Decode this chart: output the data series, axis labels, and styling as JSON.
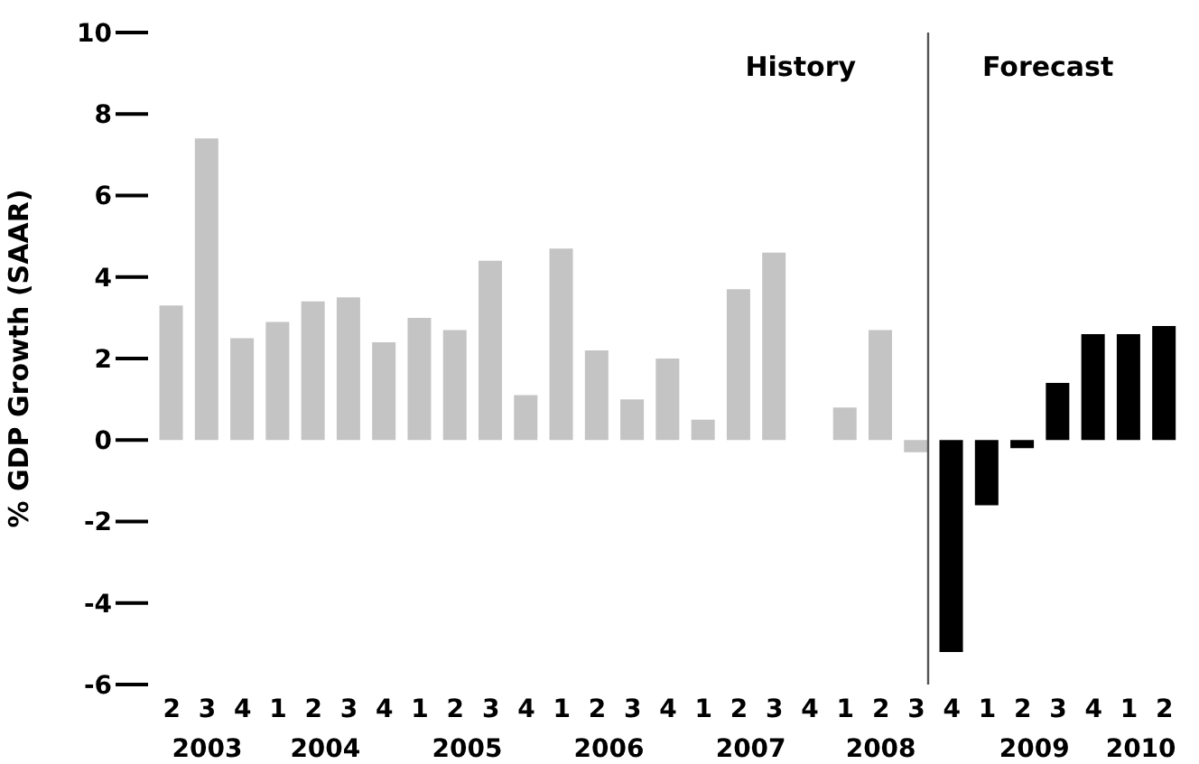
{
  "chart_data": {
    "type": "bar",
    "ylabel": "% GDP Growth (SAAR)",
    "x": [
      "2003-04",
      "2003-07",
      "2003-10",
      "2004-01",
      "2004-04",
      "2004-07",
      "2004-10",
      "2005-01",
      "2005-04",
      "2005-07",
      "2005-10",
      "2006-01",
      "2006-04",
      "2006-07",
      "2006-10",
      "2007-01",
      "2007-04",
      "2007-07",
      "2007-10",
      "2008-01",
      "2008-04",
      "2008-07",
      "2008-10",
      "2009-01",
      "2009-04",
      "2009-07",
      "2009-10",
      "2010-01",
      "2010-04"
    ],
    "values": [
      3.3,
      7.4,
      2.5,
      2.9,
      3.4,
      3.5,
      2.4,
      3.0,
      2.7,
      4.4,
      1.1,
      4.7,
      2.2,
      1.0,
      2.0,
      0.5,
      3.7,
      4.6,
      0,
      0.8,
      2.7,
      -0.3,
      -5.2,
      -1.6,
      -0.2,
      1.4,
      2.6,
      2.6,
      2.8
    ],
    "colors": [
      "#c4c4c4",
      "#c4c4c4",
      "#c4c4c4",
      "#c4c4c4",
      "#c4c4c4",
      "#c4c4c4",
      "#c4c4c4",
      "#c4c4c4",
      "#c4c4c4",
      "#c4c4c4",
      "#c4c4c4",
      "#c4c4c4",
      "#c4c4c4",
      "#c4c4c4",
      "#c4c4c4",
      "#c4c4c4",
      "#c4c4c4",
      "#c4c4c4",
      "#c4c4c4",
      "#c4c4c4",
      "#c4c4c4",
      "#c4c4c4",
      "#000000",
      "#000000",
      "#000000",
      "#000000",
      "#000000",
      "#000000",
      "#000000"
    ],
    "xlim": [
      "2003-02",
      "2010-06"
    ],
    "xticks": [
      {
        "value": "2003-04",
        "label": "2"
      },
      {
        "value": "2003-07",
        "label": "3"
      },
      {
        "value": "2003-10",
        "label": "4"
      },
      {
        "value": "2004-01",
        "label": "1"
      },
      {
        "value": "2004-04",
        "label": "2"
      },
      {
        "value": "2004-07",
        "label": "3"
      },
      {
        "value": "2004-10",
        "label": "4"
      },
      {
        "value": "2005-01",
        "label": "1"
      },
      {
        "value": "2005-04",
        "label": "2"
      },
      {
        "value": "2005-07",
        "label": "3"
      },
      {
        "value": "2005-10",
        "label": "4"
      },
      {
        "value": "2006-01",
        "label": "1"
      },
      {
        "value": "2006-04",
        "label": "2"
      },
      {
        "value": "2006-07",
        "label": "3"
      },
      {
        "value": "2006-10",
        "label": "4"
      },
      {
        "value": "2007-01",
        "label": "1"
      },
      {
        "value": "2007-04",
        "label": "2"
      },
      {
        "value": "2007-07",
        "label": "3"
      },
      {
        "value": "2007-10",
        "label": "4"
      },
      {
        "value": "2008-01",
        "label": "1"
      },
      {
        "value": "2008-04",
        "label": "2"
      },
      {
        "value": "2008-07",
        "label": "3"
      },
      {
        "value": "2008-10",
        "label": "4"
      },
      {
        "value": "2009-01",
        "label": "1"
      },
      {
        "value": "2009-04",
        "label": "2"
      },
      {
        "value": "2009-07",
        "label": "3"
      },
      {
        "value": "2009-10",
        "label": "4"
      },
      {
        "value": "2010-01",
        "label": "1"
      },
      {
        "value": "2010-04",
        "label": "2"
      }
    ],
    "ylim": [
      -6,
      10
    ],
    "yticks": [
      -6,
      -4,
      -2,
      0,
      2,
      4,
      6,
      8,
      10
    ],
    "ref_lines": [
      {
        "axis": "x",
        "value": "2008-08",
        "color": "#555555"
      }
    ],
    "annotations": [
      "History",
      "Forecast"
    ],
    "x2lim": [
      "2003-02",
      "2010-06"
    ],
    "x2ticks": [
      {
        "value": "2003-07",
        "label": "2003"
      },
      {
        "value": "2004-05",
        "label": "2004"
      },
      {
        "value": "2005-05",
        "label": "2005"
      },
      {
        "value": "2006-05",
        "label": "2006"
      },
      {
        "value": "2007-05",
        "label": "2007"
      },
      {
        "value": "2008-04",
        "label": "2008"
      },
      {
        "value": "2009-05",
        "label": "2009"
      },
      {
        "value": "2010-02",
        "label": "2010"
      }
    ],
    "grid": false,
    "legend": false
  }
}
